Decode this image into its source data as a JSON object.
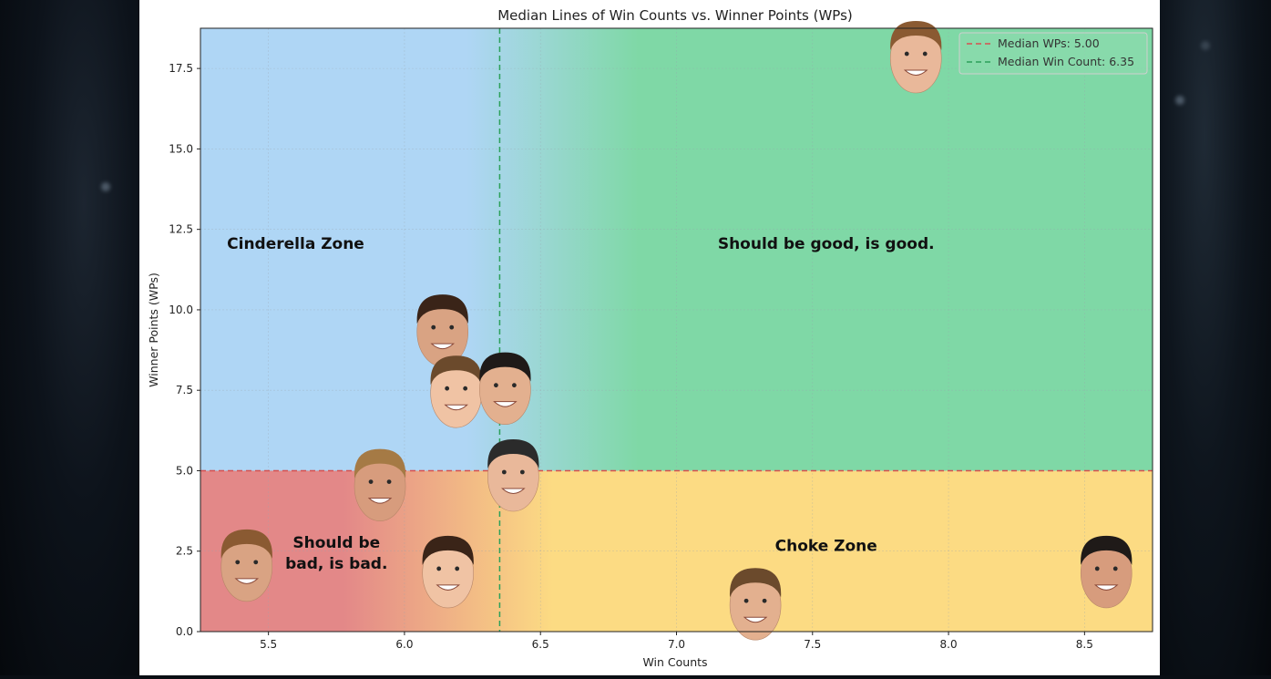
{
  "chart_data": {
    "type": "scatter",
    "title": "Median Lines of Win Counts vs. Winner Points (WPs)",
    "xlabel": "Win Counts",
    "ylabel": "Winner Points (WPs)",
    "xlim": [
      5.25,
      8.75
    ],
    "ylim": [
      0,
      18.75
    ],
    "xticks": [
      5.5,
      6.0,
      6.5,
      7.0,
      7.5,
      8.0,
      8.5
    ],
    "yticks": [
      0.0,
      2.5,
      5.0,
      7.5,
      10.0,
      12.5,
      15.0,
      17.5
    ],
    "xtick_labels": [
      "5.5",
      "6.0",
      "6.5",
      "7.0",
      "7.5",
      "8.0",
      "8.5"
    ],
    "ytick_labels": [
      "0.0",
      "2.5",
      "5.0",
      "7.5",
      "10.0",
      "12.5",
      "15.0",
      "17.5"
    ],
    "grid": true,
    "legend_position": "top-right",
    "median_wps": 5.0,
    "median_win_count": 6.35,
    "legend": [
      {
        "label": "Median WPs: 5.00",
        "color": "#d64f4f"
      },
      {
        "label": "Median Win Count: 6.35",
        "color": "#2ca05a"
      }
    ],
    "zones": [
      {
        "label": "Cinderella Zone",
        "x": 5.6,
        "y": 11.9
      },
      {
        "label": "Should be good, is good.",
        "x": 7.55,
        "y": 11.9
      },
      {
        "label": "Should be",
        "x": 5.75,
        "y": 2.6
      },
      {
        "label": "bad, is bad.",
        "x": 5.75,
        "y": 1.95
      },
      {
        "label": "Choke Zone",
        "x": 7.55,
        "y": 2.5
      }
    ],
    "points": [
      {
        "x": 7.88,
        "y": 17.9
      },
      {
        "x": 6.14,
        "y": 9.4
      },
      {
        "x": 6.19,
        "y": 7.5
      },
      {
        "x": 6.37,
        "y": 7.6
      },
      {
        "x": 5.91,
        "y": 4.6
      },
      {
        "x": 6.4,
        "y": 4.9
      },
      {
        "x": 5.42,
        "y": 2.1
      },
      {
        "x": 6.16,
        "y": 1.9
      },
      {
        "x": 7.29,
        "y": 0.9
      },
      {
        "x": 8.58,
        "y": 1.9
      }
    ],
    "colors": {
      "blue_zone": "#afd6f5",
      "green_zone": "#7fd8a6",
      "red_zone": "#e38888",
      "yellow_zone": "#fcdb83",
      "median_wps_line": "#d64f4f",
      "median_win_line": "#2ca05a"
    }
  }
}
